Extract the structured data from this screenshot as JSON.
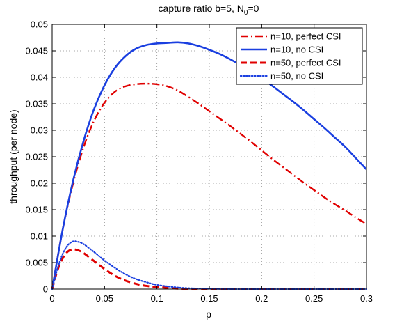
{
  "chart_data": {
    "type": "line",
    "title": {
      "main": "capture ratio b=5, N",
      "sub": "0",
      "tail": "=0"
    },
    "xlabel": "p",
    "ylabel": "throughput (per node)",
    "xlim": [
      0,
      0.3
    ],
    "ylim": [
      0,
      0.05
    ],
    "xticks": [
      0,
      0.05,
      0.1,
      0.15,
      0.2,
      0.25,
      0.3
    ],
    "xtick_labels": [
      "0",
      "0.05",
      "0.1",
      "0.15",
      "0.2",
      "0.25",
      "0.3"
    ],
    "yticks": [
      0,
      0.005,
      0.01,
      0.015,
      0.02,
      0.025,
      0.03,
      0.035,
      0.04,
      0.045,
      0.05
    ],
    "ytick_labels": [
      "0",
      "0.005",
      "0.01",
      "0.015",
      "0.02",
      "0.025",
      "0.03",
      "0.035",
      "0.04",
      "0.045",
      "0.05"
    ],
    "grid": true,
    "legend_position": "top-right",
    "series": [
      {
        "name": "n=10, perfect CSI",
        "color": "#e00000",
        "dash": "dashdot",
        "x": [
          0,
          0.01,
          0.02,
          0.03,
          0.04,
          0.05,
          0.06,
          0.07,
          0.08,
          0.09,
          0.1,
          0.11,
          0.12,
          0.13,
          0.14,
          0.15,
          0.16,
          0.17,
          0.18,
          0.19,
          0.2,
          0.21,
          0.22,
          0.23,
          0.24,
          0.25,
          0.26,
          0.27,
          0.28,
          0.29,
          0.3
        ],
        "y": [
          0,
          0.0112,
          0.02,
          0.0268,
          0.0318,
          0.0352,
          0.0373,
          0.0383,
          0.0387,
          0.0388,
          0.0387,
          0.0383,
          0.0375,
          0.0363,
          0.035,
          0.0336,
          0.0322,
          0.0308,
          0.0293,
          0.0278,
          0.0262,
          0.0246,
          0.0231,
          0.0216,
          0.0201,
          0.0187,
          0.0173,
          0.016,
          0.0148,
          0.0135,
          0.0123
        ]
      },
      {
        "name": "n=10, no CSI",
        "color": "#1a3fe0",
        "dash": "solid",
        "x": [
          0,
          0.01,
          0.02,
          0.03,
          0.04,
          0.05,
          0.06,
          0.07,
          0.08,
          0.09,
          0.1,
          0.11,
          0.12,
          0.13,
          0.14,
          0.15,
          0.16,
          0.17,
          0.18,
          0.19,
          0.2,
          0.21,
          0.22,
          0.23,
          0.24,
          0.25,
          0.26,
          0.27,
          0.28,
          0.29,
          0.3
        ],
        "y": [
          0,
          0.0112,
          0.0205,
          0.028,
          0.034,
          0.0385,
          0.0418,
          0.044,
          0.0454,
          0.0461,
          0.0464,
          0.0465,
          0.0466,
          0.0464,
          0.0459,
          0.0452,
          0.0444,
          0.0434,
          0.0423,
          0.0411,
          0.0398,
          0.0384,
          0.0369,
          0.0354,
          0.0338,
          0.0321,
          0.0304,
          0.0286,
          0.0268,
          0.0247,
          0.0226
        ]
      },
      {
        "name": "n=50, perfect CSI",
        "color": "#e00000",
        "dash": "dashed",
        "x": [
          0,
          0.005,
          0.01,
          0.015,
          0.02,
          0.025,
          0.03,
          0.04,
          0.05,
          0.06,
          0.07,
          0.08,
          0.09,
          0.1,
          0.12,
          0.14,
          0.16,
          0.18,
          0.2,
          0.25,
          0.3
        ],
        "y": [
          0,
          0.0035,
          0.0058,
          0.0071,
          0.0075,
          0.0073,
          0.0068,
          0.0053,
          0.0038,
          0.0025,
          0.0016,
          0.001,
          0.0006,
          0.0004,
          0.0001,
          3e-05,
          0,
          0,
          0,
          0,
          0
        ]
      },
      {
        "name": "n=50, no CSI",
        "color": "#1a3fe0",
        "dash": "dotted",
        "x": [
          0,
          0.005,
          0.01,
          0.015,
          0.02,
          0.025,
          0.03,
          0.04,
          0.05,
          0.06,
          0.07,
          0.08,
          0.09,
          0.1,
          0.12,
          0.14,
          0.16,
          0.18,
          0.2,
          0.25,
          0.3
        ],
        "y": [
          0,
          0.0038,
          0.0066,
          0.0083,
          0.009,
          0.0089,
          0.0085,
          0.007,
          0.0054,
          0.004,
          0.0028,
          0.0019,
          0.0013,
          0.0008,
          0.0003,
          0.0001,
          3e-05,
          0,
          0,
          0,
          0
        ]
      }
    ]
  }
}
